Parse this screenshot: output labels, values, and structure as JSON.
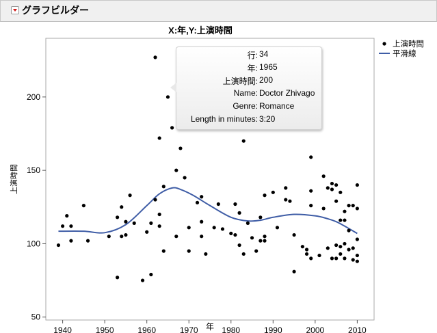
{
  "header": {
    "title": "グラフビルダー",
    "collapse_icon": "red-triangle-menu-icon"
  },
  "chart_data": {
    "type": "scatter",
    "title": "X:年,Y:上演時間",
    "xlabel": "年",
    "ylabel": "上演時間",
    "xlim": [
      1936,
      2014
    ],
    "ylim": [
      48,
      240
    ],
    "xticks": [
      1940,
      1950,
      1960,
      1970,
      1980,
      1990,
      2000,
      2010
    ],
    "yticks": [
      50,
      100,
      150,
      200
    ],
    "grid": false,
    "legend": {
      "position": "top-right",
      "entries": [
        "上演時間",
        "平滑線"
      ]
    },
    "series": [
      {
        "name": "上演時間",
        "kind": "points",
        "color": "#000000",
        "points": [
          [
            1939,
            99
          ],
          [
            1940,
            112
          ],
          [
            1941,
            119
          ],
          [
            1942,
            112
          ],
          [
            1942,
            102
          ],
          [
            1945,
            126
          ],
          [
            1946,
            102
          ],
          [
            1951,
            105
          ],
          [
            1953,
            118
          ],
          [
            1953,
            77
          ],
          [
            1954,
            125
          ],
          [
            1954,
            105
          ],
          [
            1955,
            106
          ],
          [
            1955,
            115
          ],
          [
            1956,
            133
          ],
          [
            1957,
            114
          ],
          [
            1959,
            75
          ],
          [
            1960,
            108
          ],
          [
            1961,
            79
          ],
          [
            1961,
            114
          ],
          [
            1962,
            227
          ],
          [
            1962,
            130
          ],
          [
            1963,
            120
          ],
          [
            1963,
            112
          ],
          [
            1963,
            172
          ],
          [
            1964,
            139
          ],
          [
            1964,
            95
          ],
          [
            1965,
            200
          ],
          [
            1966,
            179
          ],
          [
            1967,
            105
          ],
          [
            1967,
            150
          ],
          [
            1968,
            165
          ],
          [
            1969,
            145
          ],
          [
            1970,
            111
          ],
          [
            1970,
            95
          ],
          [
            1972,
            128
          ],
          [
            1973,
            132
          ],
          [
            1973,
            115
          ],
          [
            1973,
            105
          ],
          [
            1974,
            93
          ],
          [
            1976,
            111
          ],
          [
            1977,
            127
          ],
          [
            1978,
            110
          ],
          [
            1980,
            107
          ],
          [
            1981,
            127
          ],
          [
            1981,
            106
          ],
          [
            1982,
            99
          ],
          [
            1982,
            121
          ],
          [
            1983,
            93
          ],
          [
            1983,
            170
          ],
          [
            1984,
            114
          ],
          [
            1985,
            104
          ],
          [
            1986,
            95
          ],
          [
            1987,
            118
          ],
          [
            1987,
            102
          ],
          [
            1988,
            133
          ],
          [
            1988,
            105
          ],
          [
            1988,
            102
          ],
          [
            1990,
            135
          ],
          [
            1991,
            111
          ],
          [
            1993,
            138
          ],
          [
            1993,
            130
          ],
          [
            1994,
            129
          ],
          [
            1995,
            81
          ],
          [
            1995,
            106
          ],
          [
            1997,
            98
          ],
          [
            1998,
            96
          ],
          [
            1998,
            93
          ],
          [
            1999,
            159
          ],
          [
            1999,
            136
          ],
          [
            1999,
            126
          ],
          [
            1999,
            90
          ],
          [
            2001,
            92
          ],
          [
            2002,
            146
          ],
          [
            2002,
            124
          ],
          [
            2003,
            138
          ],
          [
            2003,
            97
          ],
          [
            2004,
            137
          ],
          [
            2004,
            141
          ],
          [
            2004,
            90
          ],
          [
            2005,
            129
          ],
          [
            2005,
            140
          ],
          [
            2005,
            99
          ],
          [
            2005,
            90
          ],
          [
            2006,
            135
          ],
          [
            2006,
            116
          ],
          [
            2006,
            98
          ],
          [
            2006,
            93
          ],
          [
            2007,
            116
          ],
          [
            2007,
            122
          ],
          [
            2007,
            100
          ],
          [
            2007,
            90
          ],
          [
            2008,
            126
          ],
          [
            2008,
            109
          ],
          [
            2008,
            96
          ],
          [
            2009,
            126
          ],
          [
            2009,
            97
          ],
          [
            2009,
            89
          ],
          [
            2010,
            140
          ],
          [
            2010,
            124
          ],
          [
            2010,
            103
          ],
          [
            2010,
            92
          ],
          [
            2010,
            88
          ]
        ]
      },
      {
        "name": "平滑線",
        "kind": "line",
        "color": "#3f5da6",
        "points": [
          [
            1939,
            108.5
          ],
          [
            1945,
            108.5
          ],
          [
            1950,
            107.5
          ],
          [
            1955,
            113
          ],
          [
            1960,
            126
          ],
          [
            1963,
            134
          ],
          [
            1966,
            138
          ],
          [
            1968,
            137
          ],
          [
            1971,
            133
          ],
          [
            1975,
            126
          ],
          [
            1980,
            118
          ],
          [
            1984,
            115.5
          ],
          [
            1987,
            116
          ],
          [
            1990,
            118
          ],
          [
            1995,
            120
          ],
          [
            2000,
            119
          ],
          [
            2003,
            117
          ],
          [
            2005,
            115
          ],
          [
            2007,
            112
          ],
          [
            2010,
            107
          ]
        ]
      }
    ]
  },
  "tooltip": {
    "rows": [
      {
        "key": "行:",
        "value": "34"
      },
      {
        "key": "年:",
        "value": "1965"
      },
      {
        "key": "上演時間:",
        "value": "200"
      },
      {
        "key": "Name:",
        "value": "Doctor Zhivago"
      },
      {
        "key": "Genre:",
        "value": "Romance"
      },
      {
        "key": "Length in minutes:",
        "value": "3:20"
      }
    ]
  }
}
